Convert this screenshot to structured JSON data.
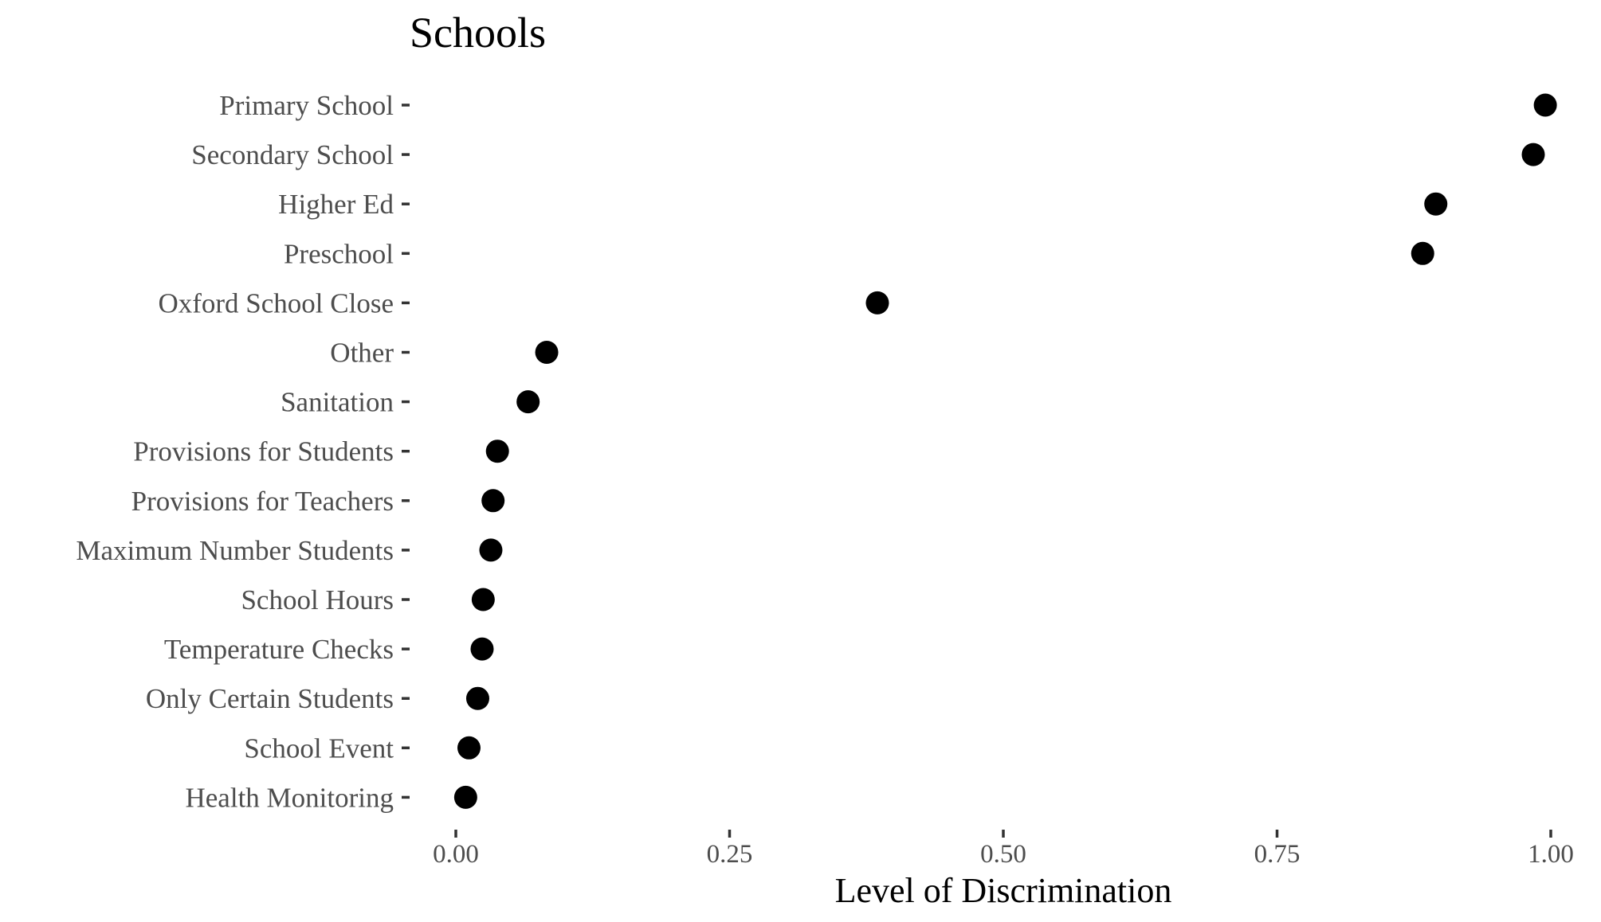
{
  "chart_data": {
    "type": "scatter",
    "title": "Schools",
    "xlabel": "Level of Discrimination",
    "ylabel": "",
    "xlim": [
      0,
      1
    ],
    "x_ticks": [
      0,
      0.25,
      0.5,
      0.75,
      1
    ],
    "x_tick_labels": [
      "0.00",
      "0.25",
      "0.50",
      "0.75",
      "1.00"
    ],
    "categories": [
      "Primary School",
      "Secondary School",
      "Higher Ed",
      "Preschool",
      "Oxford School Close",
      "Other",
      "Sanitation",
      "Provisions for Students",
      "Provisions for Teachers",
      "Maximum Number Students",
      "School Hours",
      "Temperature Checks",
      "Only Certain Students",
      "School Event",
      "Health Monitoring"
    ],
    "values": [
      0.995,
      0.984,
      0.895,
      0.883,
      0.385,
      0.083,
      0.066,
      0.038,
      0.034,
      0.032,
      0.025,
      0.024,
      0.02,
      0.012,
      0.009
    ],
    "grid": false,
    "legend": "none",
    "point_color": "#000000"
  }
}
